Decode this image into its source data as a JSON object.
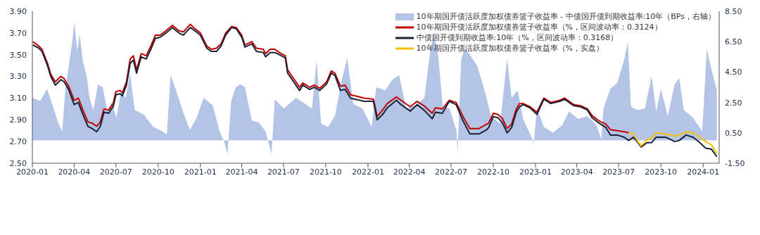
{
  "chart_data": {
    "type": "line",
    "legend": "top right",
    "xlim": [
      "2020-01-01",
      "2024-02-05"
    ],
    "xticks": [
      "2020-01",
      "2020-04",
      "2020-07",
      "2020-10",
      "2021-01",
      "2021-04",
      "2021-07",
      "2021-10",
      "2022-01",
      "2022-04",
      "2022-07",
      "2022-10",
      "2023-01",
      "2023-04",
      "2023-07",
      "2023-10",
      "2024-01"
    ],
    "ylim": [
      2.5,
      3.9
    ],
    "yticks": [
      {
        "value": 2.5,
        "label": "2.50"
      },
      {
        "value": 2.7,
        "label": "2.70"
      },
      {
        "value": 2.9,
        "label": "2.90"
      },
      {
        "value": 3.1,
        "label": "3.10"
      },
      {
        "value": 3.3,
        "label": "3.30"
      },
      {
        "value": 3.5,
        "label": "3.50"
      },
      {
        "value": 3.7,
        "label": "3.70"
      },
      {
        "value": 3.9,
        "label": "3.90"
      }
    ],
    "y2lim": [
      -1.5,
      8.5
    ],
    "y2ticks": [
      {
        "value": -1.5,
        "label": "-1.50"
      },
      {
        "value": 0.5,
        "label": "0.50"
      },
      {
        "value": 2.5,
        "label": "2.50"
      },
      {
        "value": 4.5,
        "label": "4.50"
      },
      {
        "value": 6.5,
        "label": "6.50"
      },
      {
        "value": 8.5,
        "label": "8.50"
      }
    ],
    "series": [
      {
        "name": "10年期国开债活跃度加权债券篮子收益率 - 中债国开债到期收益率:10年（BPs，右轴）",
        "type": "area",
        "axis": "y2",
        "color": "#b4c4e6",
        "x": [
          "2020-01-01",
          "2020-01-18",
          "2020-02-02",
          "2020-02-12",
          "2020-02-27",
          "2020-03-06",
          "2020-03-13",
          "2020-03-28",
          "2020-04-01",
          "2020-04-08",
          "2020-04-13",
          "2020-04-20",
          "2020-04-28",
          "2020-05-05",
          "2020-05-13",
          "2020-05-23",
          "2020-06-02",
          "2020-06-12",
          "2020-06-22",
          "2020-07-02",
          "2020-07-12",
          "2020-07-22",
          "2020-08-01",
          "2020-08-11",
          "2020-08-31",
          "2020-09-20",
          "2020-10-10",
          "2020-10-20",
          "2020-10-28",
          "2020-11-09",
          "2020-11-24",
          "2020-12-09",
          "2020-12-24",
          "2021-01-08",
          "2021-01-28",
          "2021-02-12",
          "2021-02-22",
          "2021-03-01",
          "2021-03-09",
          "2021-03-19",
          "2021-03-29",
          "2021-04-08",
          "2021-04-23",
          "2021-05-08",
          "2021-05-23",
          "2021-06-05",
          "2021-06-12",
          "2021-07-02",
          "2021-07-28",
          "2021-08-12",
          "2021-09-01",
          "2021-09-11",
          "2021-09-21",
          "2021-10-06",
          "2021-10-21",
          "2021-11-05",
          "2021-11-17",
          "2021-11-30",
          "2021-12-20",
          "2022-01-09",
          "2022-01-19",
          "2022-02-08",
          "2022-02-23",
          "2022-03-10",
          "2022-03-25",
          "2022-04-14",
          "2022-05-04",
          "2022-05-14",
          "2022-05-24",
          "2022-06-03",
          "2022-06-13",
          "2022-06-28",
          "2022-07-13",
          "2022-07-15",
          "2022-07-23",
          "2022-07-31",
          "2022-08-12",
          "2022-08-27",
          "2022-09-11",
          "2022-09-26",
          "2022-10-16",
          "2022-10-31",
          "2022-11-10",
          "2022-11-23",
          "2022-12-05",
          "2022-12-25",
          "2022-12-28",
          "2023-01-04",
          "2023-01-19",
          "2023-02-08",
          "2023-02-28",
          "2023-03-15",
          "2023-04-04",
          "2023-04-24",
          "2023-05-14",
          "2023-05-24",
          "2023-05-29",
          "2023-06-13",
          "2023-06-28",
          "2023-07-13",
          "2023-07-21",
          "2023-07-28",
          "2023-08-12",
          "2023-08-27",
          "2023-09-11",
          "2023-09-21",
          "2023-10-01",
          "2023-10-16",
          "2023-10-31",
          "2023-11-10",
          "2023-11-20",
          "2023-12-10",
          "2023-12-30",
          "2024-01-09",
          "2024-01-19",
          "2024-01-31"
        ],
        "values": [
          2.8,
          2.6,
          3.4,
          2.5,
          1.1,
          0.6,
          3.4,
          6.5,
          7.8,
          5.9,
          7.0,
          5.2,
          4.3,
          2.7,
          2.0,
          3.7,
          3.5,
          2.0,
          2.5,
          1.5,
          3.2,
          2.8,
          4.4,
          2.0,
          1.7,
          0.9,
          0.6,
          0.4,
          4.3,
          3.3,
          1.9,
          0.7,
          1.5,
          2.8,
          2.3,
          0.6,
          -0.1,
          -0.9,
          2.6,
          3.5,
          3.7,
          3.5,
          1.3,
          1.2,
          0.6,
          -0.9,
          2.7,
          2.1,
          2.8,
          2.5,
          2.1,
          5.3,
          1.1,
          0.9,
          1.6,
          4.0,
          5.4,
          2.4,
          2.1,
          0.9,
          3.5,
          3.3,
          4.0,
          4.3,
          2.1,
          2.3,
          2.8,
          5.3,
          7.1,
          5.6,
          2.2,
          2.1,
          0.6,
          -0.9,
          5.3,
          6.1,
          5.6,
          4.9,
          3.4,
          1.6,
          1.1,
          5.4,
          2.8,
          3.3,
          1.4,
          0.1,
          -0.2,
          2.1,
          0.9,
          0.5,
          1.0,
          1.9,
          1.4,
          1.6,
          1.0,
          0.1,
          2.1,
          3.4,
          3.8,
          5.3,
          6.5,
          2.2,
          2.0,
          2.1,
          4.2,
          1.9,
          3.4,
          1.6,
          3.7,
          4.1,
          2.0,
          1.5,
          0.6,
          6.0,
          4.7,
          3.3
        ]
      },
      {
        "name": "10年期国开债活跃度加权债券篮子收益率（%，区间波动率：0.3124）",
        "color": "#c00000",
        "x": [
          "2020-01-02",
          "2020-01-15",
          "2020-01-22",
          "2020-02-03",
          "2020-02-10",
          "2020-02-20",
          "2020-03-03",
          "2020-03-10",
          "2020-03-20",
          "2020-04-01",
          "2020-04-10",
          "2020-04-20",
          "2020-05-01",
          "2020-05-10",
          "2020-05-20",
          "2020-05-28",
          "2020-06-05",
          "2020-06-15",
          "2020-06-25",
          "2020-07-01",
          "2020-07-10",
          "2020-07-15",
          "2020-07-24",
          "2020-08-01",
          "2020-08-08",
          "2020-08-15",
          "2020-08-25",
          "2020-09-05",
          "2020-09-15",
          "2020-09-25",
          "2020-10-05",
          "2020-10-15",
          "2020-11-01",
          "2020-11-15",
          "2020-11-25",
          "2020-12-10",
          "2020-12-20",
          "2021-01-01",
          "2021-01-15",
          "2021-01-25",
          "2021-02-05",
          "2021-02-15",
          "2021-02-25",
          "2021-03-10",
          "2021-03-20",
          "2021-04-01",
          "2021-04-08",
          "2021-04-23",
          "2021-05-03",
          "2021-05-18",
          "2021-05-23",
          "2021-06-02",
          "2021-06-12",
          "2021-06-22",
          "2021-07-05",
          "2021-07-10",
          "2021-07-28",
          "2021-08-05",
          "2021-08-12",
          "2021-08-27",
          "2021-09-06",
          "2021-09-18",
          "2021-10-03",
          "2021-10-13",
          "2021-10-21",
          "2021-11-02",
          "2021-11-12",
          "2021-11-24",
          "2021-12-04",
          "2021-12-24",
          "2022-01-13",
          "2022-01-21",
          "2022-02-02",
          "2022-02-12",
          "2022-03-04",
          "2022-03-14",
          "2022-04-03",
          "2022-04-18",
          "2022-05-03",
          "2022-05-21",
          "2022-05-28",
          "2022-06-12",
          "2022-06-27",
          "2022-07-12",
          "2022-07-27",
          "2022-08-11",
          "2022-08-31",
          "2022-09-17",
          "2022-09-21",
          "2022-10-01",
          "2022-10-11",
          "2022-10-21",
          "2022-10-31",
          "2022-11-10",
          "2022-11-20",
          "2022-11-27",
          "2022-12-05",
          "2022-12-20",
          "2023-01-04",
          "2023-01-19",
          "2023-02-03",
          "2023-02-23",
          "2023-03-05",
          "2023-03-25",
          "2023-04-09",
          "2023-04-24",
          "2023-05-04",
          "2023-05-19",
          "2023-06-03",
          "2023-06-13",
          "2023-06-28",
          "2023-07-13",
          "2023-07-23"
        ],
        "values": [
          3.62,
          3.58,
          3.55,
          3.42,
          3.32,
          3.25,
          3.3,
          3.28,
          3.21,
          3.08,
          3.1,
          2.99,
          2.88,
          2.87,
          2.84,
          2.88,
          3.0,
          2.99,
          3.05,
          3.16,
          3.17,
          3.15,
          3.25,
          3.46,
          3.49,
          3.36,
          3.51,
          3.49,
          3.58,
          3.68,
          3.68,
          3.71,
          3.77,
          3.72,
          3.71,
          3.78,
          3.74,
          3.7,
          3.58,
          3.55,
          3.56,
          3.6,
          3.7,
          3.76,
          3.75,
          3.68,
          3.59,
          3.62,
          3.56,
          3.55,
          3.51,
          3.55,
          3.55,
          3.52,
          3.49,
          3.36,
          3.25,
          3.2,
          3.24,
          3.2,
          3.22,
          3.19,
          3.25,
          3.35,
          3.33,
          3.21,
          3.22,
          3.13,
          3.12,
          3.1,
          3.09,
          2.93,
          2.99,
          3.05,
          3.11,
          3.08,
          3.02,
          3.07,
          3.03,
          2.96,
          3.01,
          3.0,
          3.08,
          3.06,
          2.93,
          2.82,
          2.82,
          2.86,
          2.87,
          2.96,
          2.95,
          2.91,
          2.82,
          2.86,
          3.0,
          3.05,
          3.05,
          3.02,
          2.97,
          3.1,
          3.06,
          3.08,
          3.1,
          3.04,
          3.03,
          3.0,
          2.94,
          2.89,
          2.86,
          2.81,
          2.8,
          2.79,
          2.78
        ]
      },
      {
        "name": "中债国开债到期收益率:10年（%，区间波动率：0.3168）",
        "color": "#1a2236",
        "x": [
          "2020-01-02",
          "2020-01-15",
          "2020-01-22",
          "2020-02-03",
          "2020-02-10",
          "2020-02-20",
          "2020-03-03",
          "2020-03-10",
          "2020-03-20",
          "2020-04-01",
          "2020-04-10",
          "2020-04-20",
          "2020-05-01",
          "2020-05-10",
          "2020-05-20",
          "2020-05-28",
          "2020-06-05",
          "2020-06-15",
          "2020-06-25",
          "2020-07-01",
          "2020-07-10",
          "2020-07-15",
          "2020-07-24",
          "2020-08-01",
          "2020-08-08",
          "2020-08-15",
          "2020-08-25",
          "2020-09-05",
          "2020-09-15",
          "2020-09-25",
          "2020-10-05",
          "2020-10-15",
          "2020-11-01",
          "2020-11-15",
          "2020-11-25",
          "2020-12-10",
          "2020-12-20",
          "2021-01-01",
          "2021-01-15",
          "2021-01-25",
          "2021-02-05",
          "2021-02-15",
          "2021-02-25",
          "2021-03-10",
          "2021-03-20",
          "2021-04-01",
          "2021-04-08",
          "2021-04-23",
          "2021-05-03",
          "2021-05-18",
          "2021-05-23",
          "2021-06-02",
          "2021-06-12",
          "2021-06-22",
          "2021-07-05",
          "2021-07-10",
          "2021-07-28",
          "2021-08-05",
          "2021-08-12",
          "2021-08-27",
          "2021-09-06",
          "2021-09-18",
          "2021-10-03",
          "2021-10-13",
          "2021-10-21",
          "2021-11-02",
          "2021-11-12",
          "2021-11-24",
          "2021-12-04",
          "2021-12-24",
          "2022-01-13",
          "2022-01-21",
          "2022-02-02",
          "2022-02-12",
          "2022-03-04",
          "2022-03-14",
          "2022-04-03",
          "2022-04-18",
          "2022-05-03",
          "2022-05-21",
          "2022-05-28",
          "2022-06-12",
          "2022-06-27",
          "2022-07-12",
          "2022-07-27",
          "2022-08-11",
          "2022-08-31",
          "2022-09-17",
          "2022-09-21",
          "2022-10-01",
          "2022-10-11",
          "2022-10-21",
          "2022-10-31",
          "2022-11-10",
          "2022-11-20",
          "2022-11-27",
          "2022-12-05",
          "2022-12-20",
          "2023-01-04",
          "2023-01-19",
          "2023-02-03",
          "2023-02-23",
          "2023-03-05",
          "2023-03-25",
          "2023-04-09",
          "2023-04-24",
          "2023-05-04",
          "2023-05-19",
          "2023-06-03",
          "2023-06-13",
          "2023-06-28",
          "2023-07-13",
          "2023-07-23",
          "2023-08-02",
          "2023-08-12",
          "2023-08-19",
          "2023-09-01",
          "2023-09-11",
          "2023-09-21",
          "2023-10-11",
          "2023-10-31",
          "2023-11-10",
          "2023-11-25",
          "2023-12-10",
          "2023-12-25",
          "2024-01-06",
          "2024-01-19",
          "2024-01-31"
        ],
        "values": [
          3.59,
          3.56,
          3.53,
          3.4,
          3.3,
          3.22,
          3.27,
          3.25,
          3.18,
          3.04,
          3.06,
          2.95,
          2.84,
          2.82,
          2.79,
          2.84,
          2.97,
          2.96,
          3.02,
          3.13,
          3.14,
          3.12,
          3.22,
          3.42,
          3.45,
          3.33,
          3.48,
          3.46,
          3.55,
          3.65,
          3.66,
          3.69,
          3.75,
          3.7,
          3.68,
          3.75,
          3.72,
          3.68,
          3.56,
          3.53,
          3.53,
          3.58,
          3.68,
          3.75,
          3.74,
          3.66,
          3.57,
          3.6,
          3.53,
          3.52,
          3.48,
          3.52,
          3.52,
          3.5,
          3.47,
          3.33,
          3.22,
          3.17,
          3.22,
          3.18,
          3.2,
          3.17,
          3.23,
          3.33,
          3.31,
          3.17,
          3.18,
          3.1,
          3.09,
          3.07,
          3.07,
          2.9,
          2.95,
          3.01,
          3.08,
          3.04,
          2.98,
          3.04,
          2.99,
          2.91,
          2.97,
          2.96,
          3.07,
          3.04,
          2.89,
          2.77,
          2.77,
          2.81,
          2.83,
          2.93,
          2.92,
          2.87,
          2.78,
          2.83,
          2.97,
          3.02,
          3.04,
          3.01,
          2.95,
          3.09,
          3.05,
          3.07,
          3.09,
          3.03,
          3.02,
          2.99,
          2.92,
          2.87,
          2.83,
          2.76,
          2.76,
          2.74,
          2.71,
          2.74,
          2.69,
          2.65,
          2.69,
          2.69,
          2.74,
          2.74,
          2.7,
          2.71,
          2.76,
          2.74,
          2.69,
          2.64,
          2.63,
          2.56
        ]
      },
      {
        "name": "10年期国开债活跃度加权债券篮子收益率（%，实盘）",
        "color": "#f5c000",
        "x": [
          "2023-07-23",
          "2023-08-02",
          "2023-08-12",
          "2023-08-19",
          "2023-09-01",
          "2023-09-11",
          "2023-09-21",
          "2023-10-11",
          "2023-10-31",
          "2023-11-10",
          "2023-11-25",
          "2023-12-10",
          "2023-12-25",
          "2024-01-06",
          "2024-01-19",
          "2024-01-31"
        ],
        "values": [
          2.78,
          2.77,
          2.7,
          2.66,
          2.72,
          2.73,
          2.78,
          2.77,
          2.75,
          2.76,
          2.79,
          2.78,
          2.74,
          2.7,
          2.67,
          2.59
        ]
      }
    ]
  }
}
